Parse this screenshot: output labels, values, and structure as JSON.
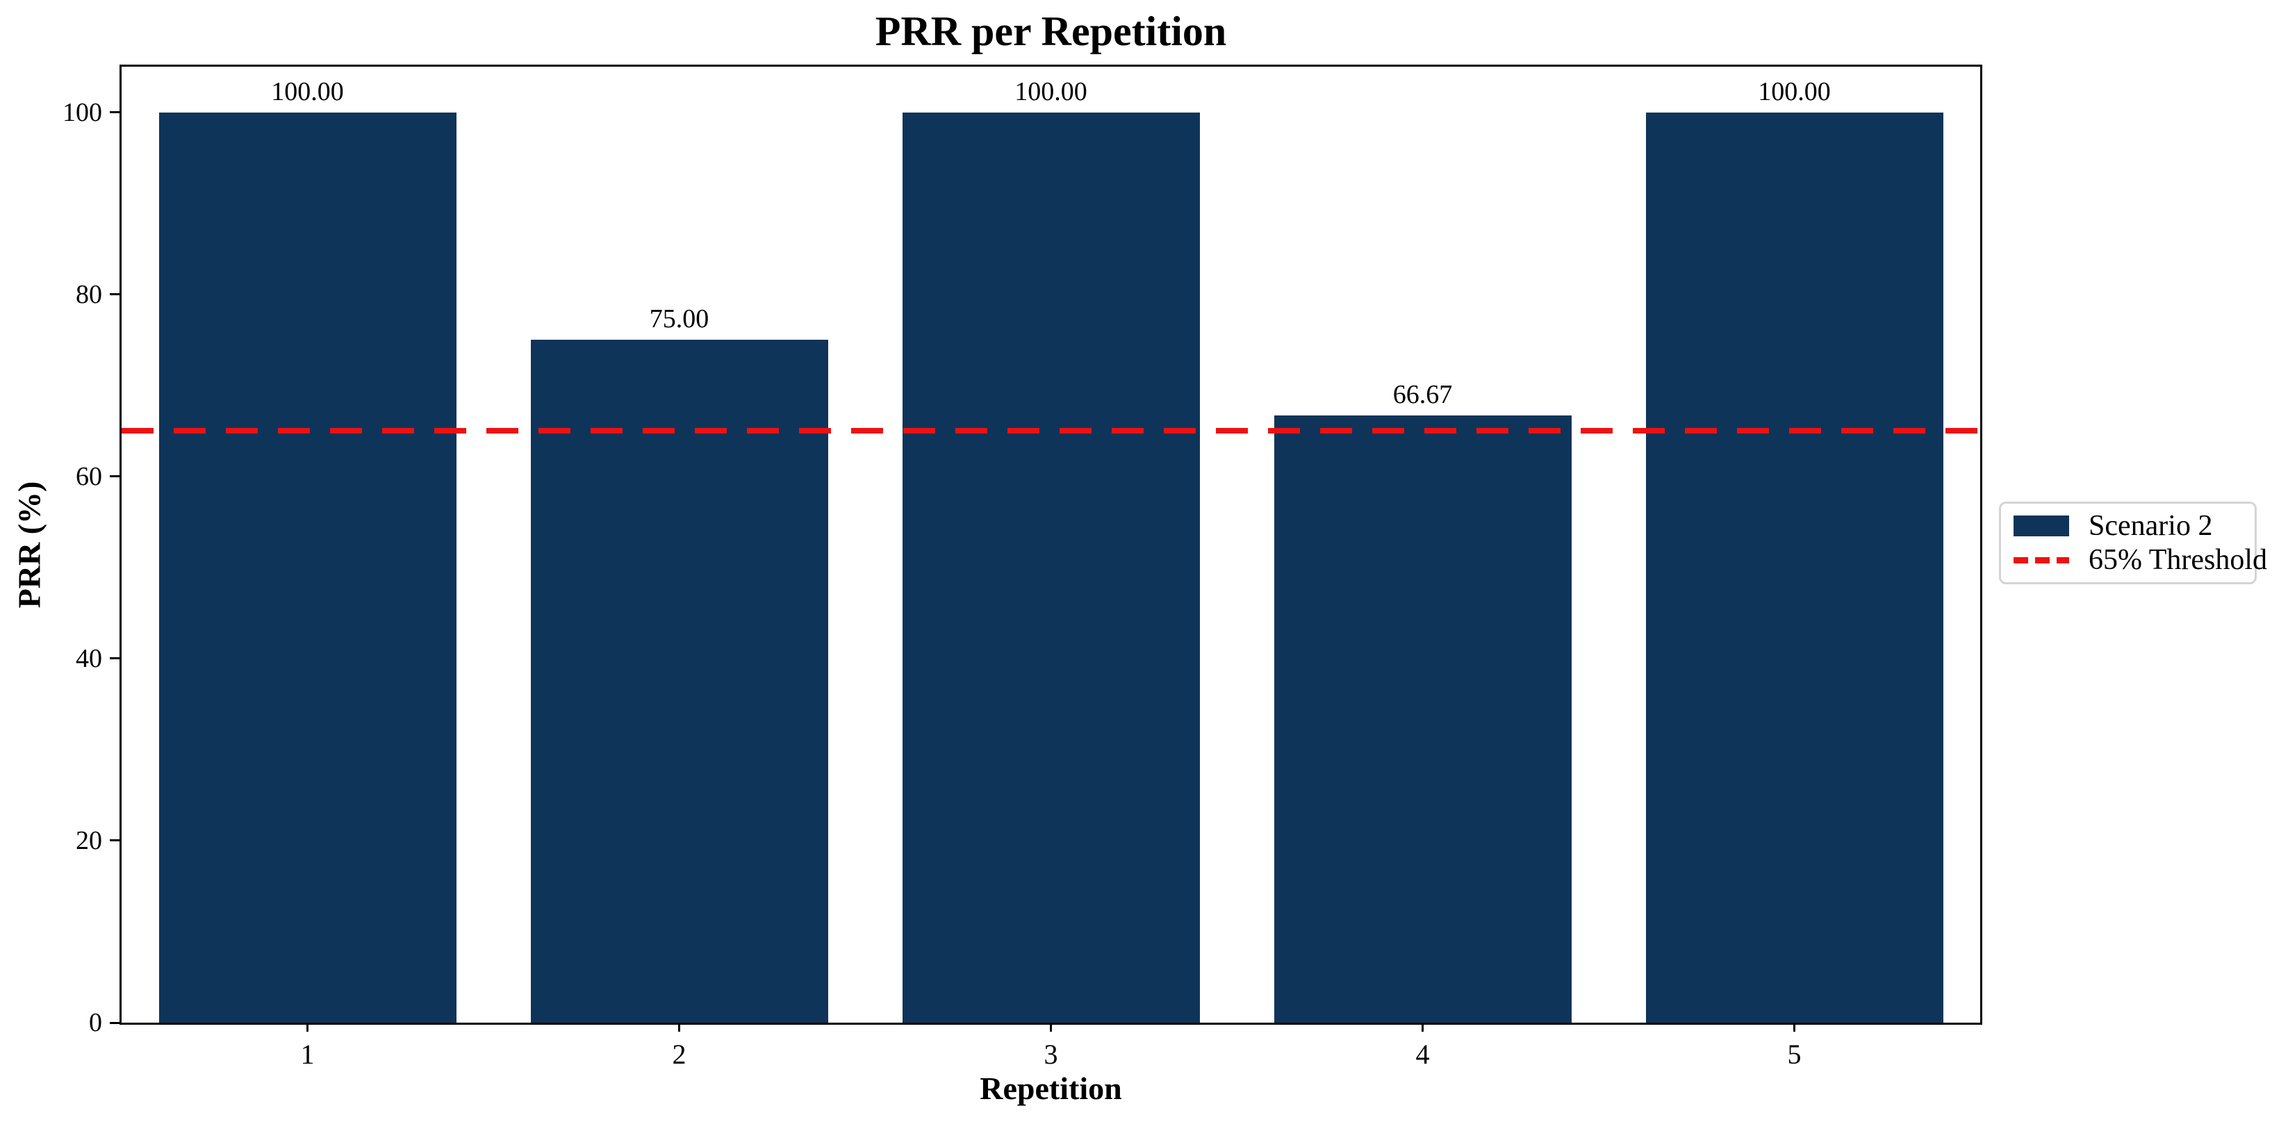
{
  "chart_data": {
    "type": "bar",
    "title": "PRR per Repetition",
    "xlabel": "Repetition",
    "ylabel": "PRR (%)",
    "categories": [
      "1",
      "2",
      "3",
      "4",
      "5"
    ],
    "series": [
      {
        "name": "Scenario 2",
        "values": [
          100.0,
          75.0,
          100.0,
          66.67,
          100.0
        ],
        "color": "#0f3459"
      }
    ],
    "bar_value_labels": [
      "100.00",
      "75.00",
      "100.00",
      "66.67",
      "100.00"
    ],
    "threshold_line": {
      "label": "65% Threshold",
      "value": 65,
      "color": "#ee1111",
      "style": "dashed"
    },
    "yticks": [
      0,
      20,
      40,
      60,
      80,
      100
    ],
    "ylim": [
      0,
      105
    ],
    "xlim": [
      0.5,
      5.5
    ],
    "bar_width": 0.8,
    "grid": false,
    "legend": {
      "position": "outside-right",
      "entries": [
        "Scenario 2",
        "65% Threshold"
      ]
    }
  }
}
